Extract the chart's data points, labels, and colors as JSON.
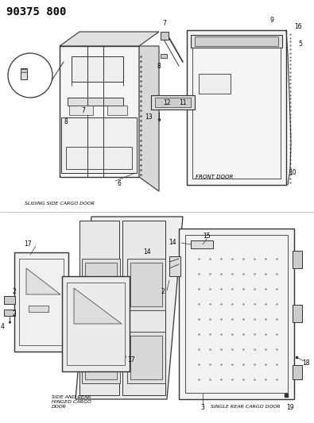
{
  "title": "90375 800",
  "bg_color": "#ffffff",
  "line_color": "#333333",
  "title_fontsize": 10,
  "title_weight": "bold",
  "label_fontsize": 5.0,
  "partnum_fontsize": 5.5,
  "sections": {
    "top_left_label": "SLIDING SIDE CARGO DOOR",
    "top_right_label": "FRONT DOOR",
    "bot_left_label": "SIDE AND REAR\nHINGED CARGO\nDOOR",
    "bot_right_label": "SINGLE REAR CARGO DOOR"
  }
}
